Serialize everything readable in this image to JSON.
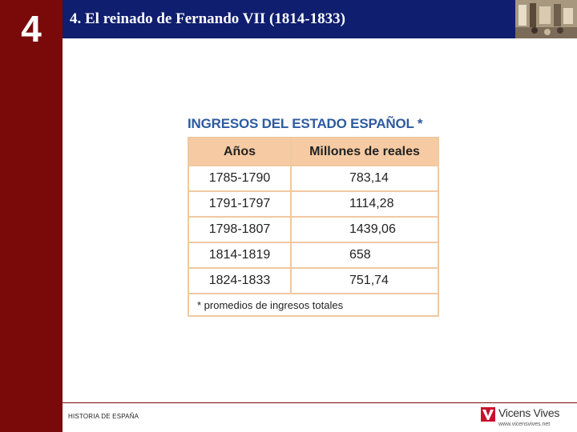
{
  "chapter": {
    "number": "4"
  },
  "header": {
    "title": "4. El reinado de Fernando VII (1814-1833)"
  },
  "table": {
    "title": "INGRESOS DEL ESTADO ESPAÑOL *",
    "columns": [
      "Años",
      "Millones de reales"
    ],
    "rows": [
      {
        "years": "1785-1790",
        "value": "783,14"
      },
      {
        "years": "1791-1797",
        "value": "1114,28"
      },
      {
        "years": "1798-1807",
        "value": "1439,06"
      },
      {
        "years": "1814-1819",
        "value": "658"
      },
      {
        "years": "1824-1833",
        "value": "751,74"
      }
    ],
    "footnote": "* promedios de ingresos totales"
  },
  "footer": {
    "text": "HISTORIA DE ESPAÑA",
    "logo_name": "Vicens Vives",
    "logo_url": "www.vicensvives.net"
  },
  "colors": {
    "left_band": "#7a0a0a",
    "top_band": "#0f1e6e",
    "table_header_bg": "#f6cba3",
    "table_border": "#f0c8a0",
    "table_title": "#2d5b9e",
    "logo_red": "#c8102e"
  }
}
